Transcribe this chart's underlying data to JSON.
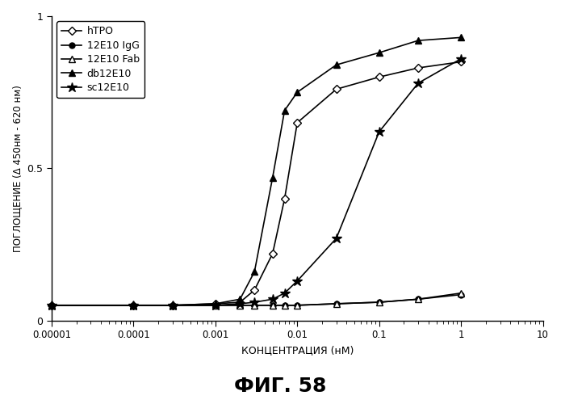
{
  "title": "ФИГ. 58",
  "xlabel": "КОНЦЕНТРАЦИЯ (нМ)",
  "ylabel": "ПОГЛОЩЕНИЕ (Δ 450нм - 620 нм)",
  "ylim": [
    0,
    1.0
  ],
  "series": [
    {
      "label": "hTPO",
      "marker": "D",
      "markerfacecolor": "white",
      "markeredgecolor": "black",
      "linecolor": "black",
      "linewidth": 1.2,
      "markersize": 5,
      "x": [
        1e-05,
        0.0001,
        0.0003,
        0.001,
        0.002,
        0.003,
        0.005,
        0.007,
        0.01,
        0.03,
        0.1,
        0.3,
        1.0
      ],
      "y": [
        0.05,
        0.05,
        0.05,
        0.055,
        0.06,
        0.1,
        0.22,
        0.4,
        0.65,
        0.76,
        0.8,
        0.83,
        0.85
      ]
    },
    {
      "label": "12E10 IgG",
      "marker": "o",
      "markerfacecolor": "black",
      "markeredgecolor": "black",
      "linecolor": "black",
      "linewidth": 1.2,
      "markersize": 5,
      "x": [
        1e-05,
        0.0001,
        0.0003,
        0.001,
        0.002,
        0.003,
        0.005,
        0.007,
        0.01,
        0.03,
        0.1,
        0.3,
        1.0
      ],
      "y": [
        0.05,
        0.05,
        0.05,
        0.05,
        0.05,
        0.05,
        0.05,
        0.05,
        0.05,
        0.055,
        0.06,
        0.07,
        0.085
      ]
    },
    {
      "label": "12E10 Fab",
      "marker": "^",
      "markerfacecolor": "white",
      "markeredgecolor": "black",
      "linecolor": "black",
      "linewidth": 1.2,
      "markersize": 6,
      "x": [
        1e-05,
        0.0001,
        0.0003,
        0.001,
        0.002,
        0.003,
        0.005,
        0.007,
        0.01,
        0.03,
        0.1,
        0.3,
        1.0
      ],
      "y": [
        0.05,
        0.05,
        0.05,
        0.05,
        0.05,
        0.05,
        0.05,
        0.05,
        0.05,
        0.055,
        0.06,
        0.07,
        0.09
      ]
    },
    {
      "label": "db12E10",
      "marker": "^",
      "markerfacecolor": "black",
      "markeredgecolor": "black",
      "linecolor": "black",
      "linewidth": 1.2,
      "markersize": 6,
      "x": [
        1e-05,
        0.0001,
        0.0003,
        0.001,
        0.002,
        0.003,
        0.005,
        0.007,
        0.01,
        0.03,
        0.1,
        0.3,
        1.0
      ],
      "y": [
        0.05,
        0.05,
        0.05,
        0.055,
        0.07,
        0.16,
        0.47,
        0.69,
        0.75,
        0.84,
        0.88,
        0.92,
        0.93
      ]
    },
    {
      "label": "sc12E10",
      "marker": "*",
      "markerfacecolor": "black",
      "markeredgecolor": "black",
      "linecolor": "black",
      "linewidth": 1.2,
      "markersize": 9,
      "x": [
        1e-05,
        0.0001,
        0.0003,
        0.001,
        0.002,
        0.003,
        0.005,
        0.007,
        0.01,
        0.03,
        0.1,
        0.3,
        1.0
      ],
      "y": [
        0.05,
        0.05,
        0.05,
        0.05,
        0.055,
        0.06,
        0.07,
        0.09,
        0.13,
        0.27,
        0.62,
        0.78,
        0.86
      ]
    }
  ],
  "xtick_positions": [
    1e-05,
    0.0001,
    0.001,
    0.01,
    0.1,
    1.0,
    10.0
  ],
  "xtick_labels": [
    "0.00001",
    "0.0001",
    "0.001",
    "0.01",
    "0.1",
    "1",
    "10"
  ],
  "ytick_values": [
    0,
    0.5,
    1
  ],
  "background_color": "white",
  "figsize": [
    6.95,
    5.0
  ],
  "dpi": 100
}
